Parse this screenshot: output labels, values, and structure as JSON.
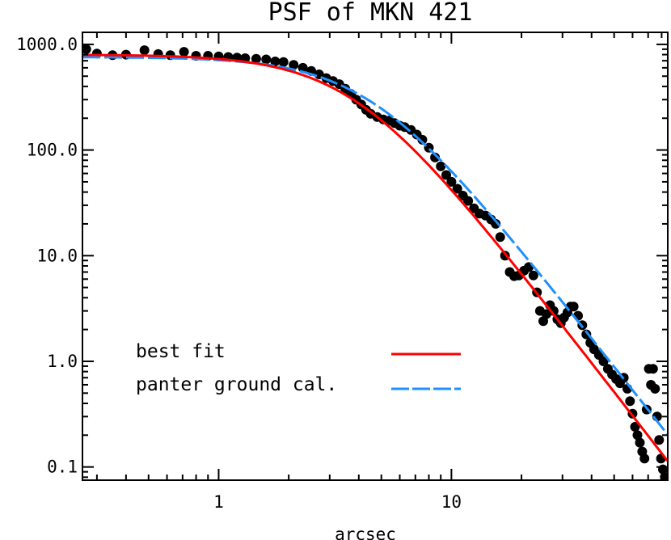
{
  "chart_data": {
    "type": "scatter+line",
    "title": "PSF of MKN 421",
    "xlabel": "arcsec",
    "ylabel": "",
    "xscale": "log",
    "yscale": "log",
    "xlim": [
      0.26,
      85
    ],
    "ylim": [
      0.075,
      1300
    ],
    "x_ticks": [
      1,
      10
    ],
    "x_tick_labels": [
      "1",
      "10"
    ],
    "y_ticks": [
      0.1,
      1,
      10,
      100,
      1000
    ],
    "y_tick_labels": [
      "0.1",
      "1.0",
      "10.0",
      "100.0",
      "1000.0"
    ],
    "legend_position": "lower-left",
    "series": [
      {
        "name": "data",
        "kind": "points",
        "color": "#000000",
        "points": [
          [
            0.27,
            900
          ],
          [
            0.3,
            820
          ],
          [
            0.35,
            790
          ],
          [
            0.4,
            800
          ],
          [
            0.48,
            880
          ],
          [
            0.55,
            810
          ],
          [
            0.62,
            790
          ],
          [
            0.71,
            850
          ],
          [
            0.8,
            780
          ],
          [
            0.9,
            780
          ],
          [
            1.0,
            770
          ],
          [
            1.1,
            760
          ],
          [
            1.2,
            750
          ],
          [
            1.3,
            740
          ],
          [
            1.45,
            730
          ],
          [
            1.6,
            720
          ],
          [
            1.75,
            690
          ],
          [
            1.9,
            680
          ],
          [
            2.1,
            640
          ],
          [
            2.3,
            600
          ],
          [
            2.5,
            560
          ],
          [
            2.7,
            520
          ],
          [
            2.9,
            480
          ],
          [
            3.1,
            450
          ],
          [
            3.3,
            420
          ],
          [
            3.5,
            380
          ],
          [
            3.7,
            340
          ],
          [
            3.9,
            300
          ],
          [
            4.1,
            270
          ],
          [
            4.3,
            240
          ],
          [
            4.5,
            220
          ],
          [
            4.8,
            205
          ],
          [
            5.1,
            195
          ],
          [
            5.4,
            190
          ],
          [
            5.7,
            180
          ],
          [
            6.0,
            170
          ],
          [
            6.3,
            165
          ],
          [
            6.7,
            155
          ],
          [
            7.1,
            140
          ],
          [
            7.5,
            125
          ],
          [
            8.0,
            105
          ],
          [
            8.5,
            85
          ],
          [
            9.0,
            70
          ],
          [
            9.5,
            58
          ],
          [
            10.0,
            50
          ],
          [
            10.6,
            43
          ],
          [
            11.2,
            37
          ],
          [
            11.8,
            33
          ],
          [
            12.5,
            28
          ],
          [
            13.2,
            25
          ],
          [
            14.0,
            24
          ],
          [
            14.8,
            22
          ],
          [
            15.5,
            20
          ],
          [
            16.2,
            15
          ],
          [
            17.0,
            10
          ],
          [
            17.8,
            7
          ],
          [
            18.6,
            6.4
          ],
          [
            19.5,
            6.5
          ],
          [
            20.5,
            7.2
          ],
          [
            21.5,
            7.8
          ],
          [
            22.5,
            6.5
          ],
          [
            23.3,
            4.5
          ],
          [
            24.0,
            3.0
          ],
          [
            24.8,
            2.4
          ],
          [
            25.6,
            2.8
          ],
          [
            26.5,
            3.4
          ],
          [
            27.5,
            3.0
          ],
          [
            28.5,
            2.5
          ],
          [
            29.5,
            2.3
          ],
          [
            30.5,
            2.6
          ],
          [
            31.5,
            2.9
          ],
          [
            32.5,
            3.3
          ],
          [
            33.5,
            3.3
          ],
          [
            35.0,
            2.7
          ],
          [
            36.5,
            2.2
          ],
          [
            38.0,
            1.8
          ],
          [
            39.5,
            1.5
          ],
          [
            41.0,
            1.3
          ],
          [
            43.0,
            1.15
          ],
          [
            45.0,
            1.0
          ],
          [
            47.0,
            0.85
          ],
          [
            49.0,
            0.75
          ],
          [
            51.0,
            0.68
          ],
          [
            53.0,
            0.62
          ],
          [
            55.0,
            0.7
          ],
          [
            57.0,
            0.55
          ],
          [
            58.5,
            0.42
          ],
          [
            60.0,
            0.32
          ],
          [
            61.5,
            0.24
          ],
          [
            63.0,
            0.2
          ],
          [
            64.5,
            0.17
          ],
          [
            66.0,
            0.14
          ],
          [
            67.5,
            0.12
          ],
          [
            69.0,
            0.35
          ],
          [
            70.5,
            0.85
          ],
          [
            72.0,
            0.6
          ],
          [
            73.5,
            0.85
          ],
          [
            75.0,
            0.55
          ],
          [
            76.5,
            0.3
          ],
          [
            78.0,
            0.18
          ],
          [
            79.5,
            0.12
          ],
          [
            81.0,
            0.095
          ],
          [
            82.5,
            0.08
          ]
        ]
      },
      {
        "name": "best fit",
        "kind": "line",
        "color": "#ff0000",
        "style": "solid",
        "model": {
          "amplitude": 800,
          "core_radius": 3.8,
          "slope": 2.85
        }
      },
      {
        "name": "panter ground cal.",
        "kind": "line",
        "color": "#1e90ff",
        "style": "dashed",
        "model": {
          "amplitude": 760,
          "core_radius": 4.5,
          "slope": 2.8
        }
      }
    ]
  }
}
